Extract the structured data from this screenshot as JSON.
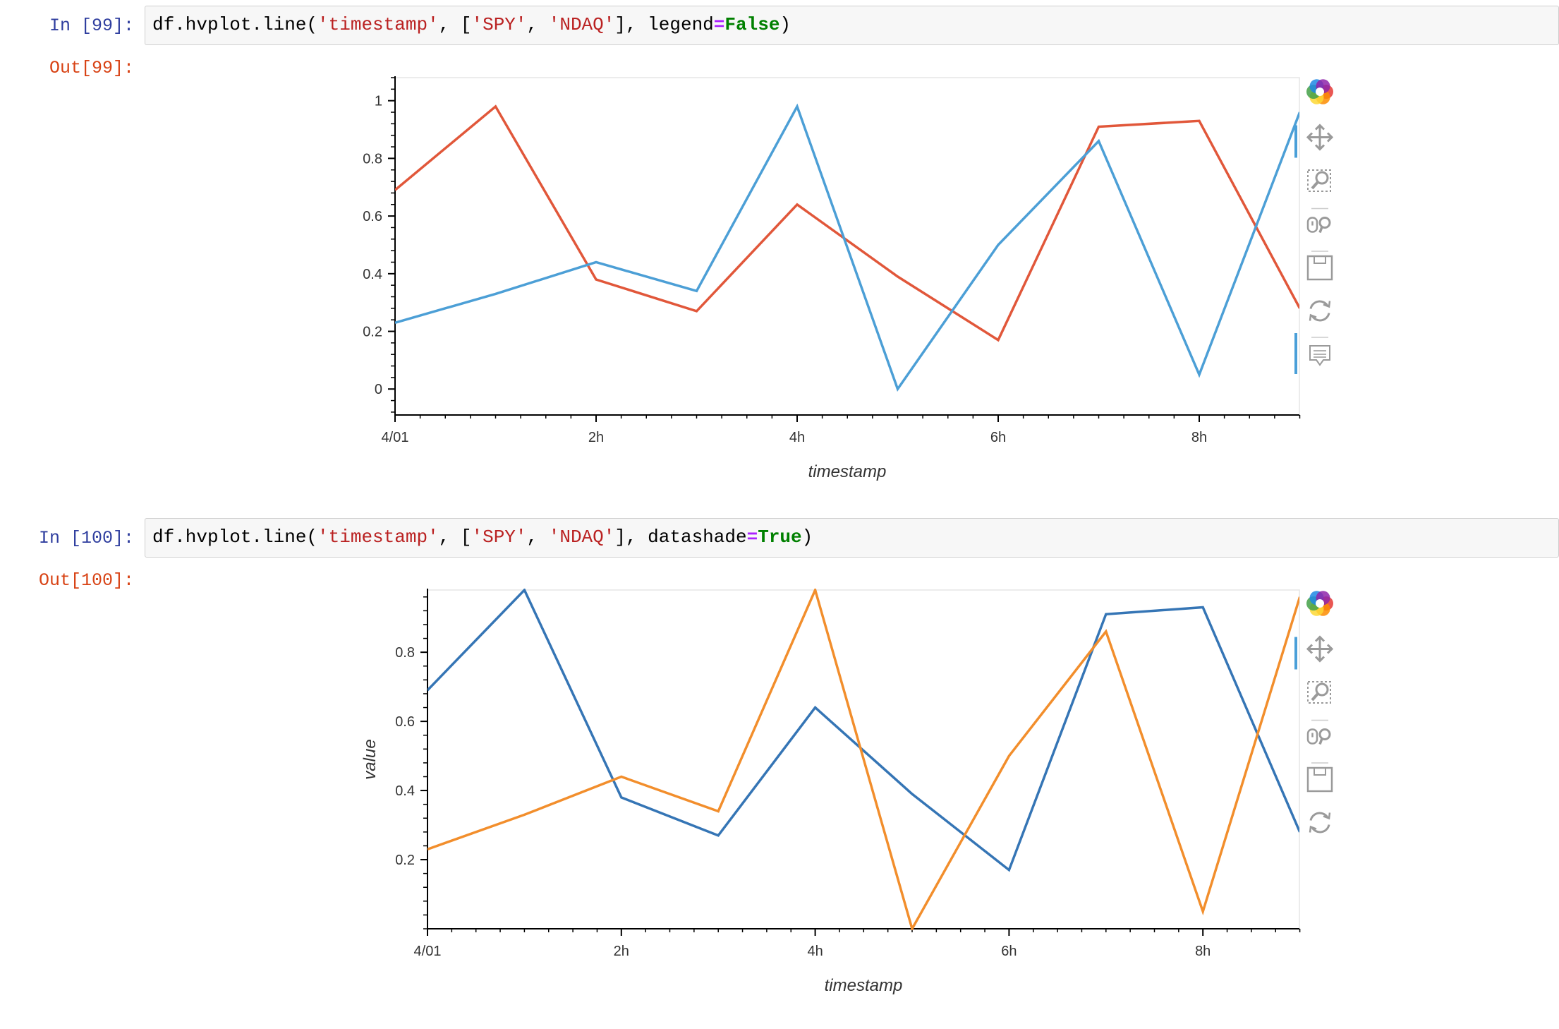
{
  "cells": [
    {
      "in_prompt": "In [99]:",
      "out_prompt": "Out[99]:",
      "code": {
        "obj": "df.hvplot.line(",
        "arg1": "'timestamp'",
        "sep1": ", [",
        "arg2": "'SPY'",
        "sep2": ", ",
        "arg3": "'NDAQ'",
        "sep3": "], ",
        "kw_name": "legend",
        "eq": "=",
        "kw_value": "False",
        "close": ")"
      }
    },
    {
      "in_prompt": "In [100]:",
      "out_prompt": "Out[100]:",
      "code": {
        "obj": "df.hvplot.line(",
        "arg1": "'timestamp'",
        "sep1": ", [",
        "arg2": "'SPY'",
        "sep2": ", ",
        "arg3": "'NDAQ'",
        "sep3": "], ",
        "kw_name": "datashade",
        "eq": "=",
        "kw_value": "True",
        "close": ")"
      }
    }
  ],
  "toolbar": {
    "tools": [
      "bokeh-logo-icon",
      "pan-icon",
      "box-zoom-icon",
      "wheel-zoom-icon",
      "save-icon",
      "reset-icon",
      "hover-icon"
    ]
  },
  "chart_data": [
    {
      "type": "line",
      "x": [
        "4/01",
        "1h",
        "2h",
        "3h",
        "4h",
        "5h",
        "6h",
        "7h",
        "8h",
        "9h"
      ],
      "x_tick_labels": [
        "4/01",
        "2h",
        "4h",
        "6h",
        "8h"
      ],
      "y_ticks": [
        "0",
        "0.2",
        "0.4",
        "0.6",
        "0.8",
        "1"
      ],
      "xlabel": "timestamp",
      "ylabel": "",
      "ylim": [
        -0.09,
        1.08
      ],
      "legend": false,
      "grid": false,
      "series": [
        {
          "color": "#e1573a",
          "values": [
            0.69,
            0.98,
            0.38,
            0.27,
            0.64,
            0.39,
            0.17,
            0.91,
            0.93,
            0.28
          ]
        },
        {
          "color": "#4c9fd6",
          "values": [
            0.23,
            0.33,
            0.44,
            0.34,
            0.98,
            0.0,
            0.5,
            0.86,
            0.05,
            0.96
          ]
        }
      ]
    },
    {
      "type": "line",
      "x": [
        "4/01",
        "1h",
        "2h",
        "3h",
        "4h",
        "5h",
        "6h",
        "7h",
        "8h",
        "9h"
      ],
      "x_tick_labels": [
        "4/01",
        "2h",
        "4h",
        "6h",
        "8h"
      ],
      "y_ticks": [
        "0.2",
        "0.4",
        "0.6",
        "0.8"
      ],
      "xlabel": "timestamp",
      "ylabel": "value",
      "ylim": [
        0.0,
        0.98
      ],
      "legend": false,
      "grid": false,
      "series": [
        {
          "color": "#3575b5",
          "values": [
            0.69,
            0.98,
            0.38,
            0.27,
            0.64,
            0.39,
            0.17,
            0.91,
            0.93,
            0.28
          ]
        },
        {
          "color": "#f28e2c",
          "values": [
            0.23,
            0.33,
            0.44,
            0.34,
            0.98,
            0.0,
            0.5,
            0.86,
            0.05,
            0.96
          ]
        }
      ]
    }
  ]
}
